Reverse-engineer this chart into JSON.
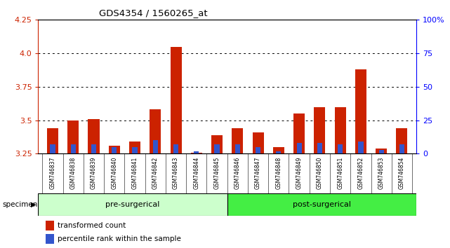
{
  "title": "GDS4354 / 1560265_at",
  "samples": [
    "GSM746837",
    "GSM746838",
    "GSM746839",
    "GSM746840",
    "GSM746841",
    "GSM746842",
    "GSM746843",
    "GSM746844",
    "GSM746845",
    "GSM746846",
    "GSM746847",
    "GSM746848",
    "GSM746849",
    "GSM746850",
    "GSM746851",
    "GSM746852",
    "GSM746853",
    "GSM746854"
  ],
  "red_values": [
    3.44,
    3.5,
    3.51,
    3.31,
    3.34,
    3.58,
    4.05,
    3.26,
    3.39,
    3.44,
    3.41,
    3.3,
    3.55,
    3.6,
    3.6,
    3.88,
    3.29,
    3.44
  ],
  "blue_percentiles": [
    7,
    7,
    7,
    5,
    5,
    10,
    7,
    2,
    7,
    7,
    5,
    2,
    8,
    8,
    7,
    9,
    3,
    7
  ],
  "group_label_pre": "pre-surgerical",
  "group_label_post": "post-surgerical",
  "pre_count": 9,
  "post_count": 9,
  "y_min": 3.25,
  "y_max": 4.25,
  "y_ticks_left": [
    3.25,
    3.5,
    3.75,
    4.0,
    4.25
  ],
  "y_ticks_right": [
    0,
    25,
    50,
    75,
    100
  ],
  "bar_width": 0.55,
  "red_color": "#cc2200",
  "blue_color": "#3355cc",
  "background_plot": "#ffffff",
  "background_sample": "#d8d8d8",
  "background_pre": "#ccffcc",
  "background_post": "#44ee44",
  "specimen_label": "specimen",
  "legend_red": "transformed count",
  "legend_blue": "percentile rank within the sample",
  "baseline": 3.25,
  "grid_dotted_values": [
    3.5,
    3.75,
    4.0
  ]
}
